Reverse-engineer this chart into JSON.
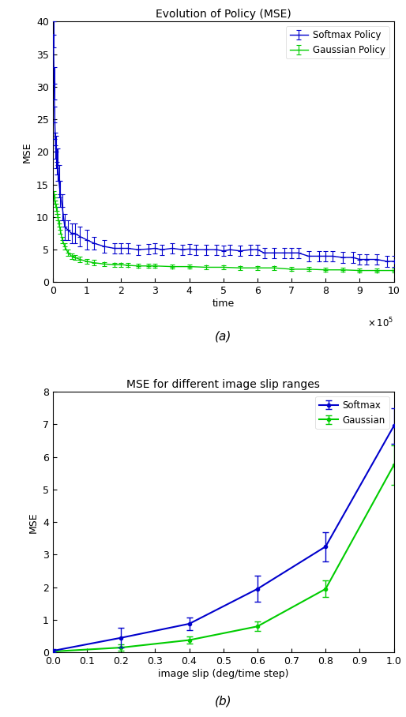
{
  "fig_width": 5.14,
  "fig_height": 9.08,
  "dpi": 100,
  "plot_a": {
    "title": "Evolution of Policy (MSE)",
    "xlabel": "time",
    "ylabel": "MSE",
    "xlim": [
      0,
      1000000
    ],
    "ylim": [
      0,
      40
    ],
    "yticks": [
      0,
      5,
      10,
      15,
      20,
      25,
      30,
      35,
      40
    ],
    "xtick_labels": [
      "0",
      "1",
      "2",
      "3",
      "4",
      "5",
      "6",
      "7",
      "8",
      "9",
      "10"
    ],
    "softmax_color": "#0000cc",
    "gaussian_color": "#00cc00",
    "legend_softmax": "Softmax Policy",
    "legend_gaussian": "Gaussian Policy",
    "softmax_x": [
      0.02,
      0.04,
      0.06,
      0.08,
      0.1,
      0.12,
      0.15,
      0.18,
      0.22,
      0.28,
      0.35,
      0.45,
      0.55,
      0.65,
      0.8,
      1.0,
      1.2,
      1.5,
      1.8,
      2.0,
      2.2,
      2.5,
      2.8,
      3.0,
      3.2,
      3.5,
      3.8,
      4.0,
      4.2,
      4.5,
      4.8,
      5.0,
      5.2,
      5.5,
      5.8,
      6.0,
      6.2,
      6.5,
      6.8,
      7.0,
      7.2,
      7.5,
      7.8,
      8.0,
      8.2,
      8.5,
      8.8,
      9.0,
      9.2,
      9.5,
      9.8,
      10.0
    ],
    "softmax_y": [
      38.0,
      30.5,
      24.5,
      21.0,
      20.0,
      18.5,
      18.0,
      15.5,
      13.5,
      11.5,
      8.5,
      8.0,
      7.5,
      7.5,
      7.0,
      6.5,
      6.0,
      5.5,
      5.2,
      5.2,
      5.2,
      5.0,
      5.1,
      5.2,
      5.0,
      5.2,
      5.0,
      5.1,
      5.0,
      5.0,
      5.0,
      4.8,
      5.0,
      4.8,
      5.0,
      5.0,
      4.5,
      4.5,
      4.5,
      4.5,
      4.5,
      4.0,
      4.0,
      4.0,
      4.0,
      3.8,
      3.8,
      3.5,
      3.5,
      3.5,
      3.2,
      3.2
    ],
    "softmax_err": [
      2.0,
      2.5,
      2.5,
      2.0,
      2.5,
      2.0,
      2.5,
      2.5,
      2.0,
      2.0,
      2.0,
      1.5,
      1.5,
      1.5,
      1.5,
      1.5,
      1.0,
      1.0,
      0.8,
      0.8,
      0.8,
      0.8,
      0.8,
      0.8,
      0.8,
      0.8,
      0.8,
      0.8,
      0.8,
      0.8,
      0.8,
      0.8,
      0.8,
      0.8,
      0.8,
      0.8,
      0.8,
      0.8,
      0.8,
      0.8,
      0.8,
      0.8,
      0.8,
      0.8,
      0.8,
      0.8,
      0.8,
      0.8,
      0.8,
      0.8,
      0.8,
      0.8
    ],
    "gaussian_x": [
      0.02,
      0.04,
      0.06,
      0.08,
      0.1,
      0.12,
      0.15,
      0.18,
      0.22,
      0.28,
      0.35,
      0.45,
      0.55,
      0.65,
      0.8,
      1.0,
      1.2,
      1.5,
      1.8,
      2.0,
      2.2,
      2.5,
      2.8,
      3.0,
      3.5,
      4.0,
      4.5,
      5.0,
      5.5,
      6.0,
      6.5,
      7.0,
      7.5,
      8.0,
      8.5,
      9.0,
      9.5,
      10.0
    ],
    "gaussian_y": [
      13.5,
      13.0,
      12.5,
      12.0,
      11.5,
      11.0,
      10.0,
      9.0,
      8.0,
      6.5,
      5.5,
      4.5,
      4.0,
      3.8,
      3.5,
      3.2,
      3.0,
      2.8,
      2.7,
      2.7,
      2.6,
      2.5,
      2.5,
      2.5,
      2.4,
      2.4,
      2.3,
      2.3,
      2.2,
      2.2,
      2.2,
      2.0,
      2.0,
      1.9,
      1.9,
      1.8,
      1.8,
      1.8
    ],
    "gaussian_err": [
      0.5,
      0.5,
      0.5,
      0.5,
      0.5,
      0.5,
      0.5,
      0.5,
      0.5,
      0.5,
      0.5,
      0.5,
      0.4,
      0.4,
      0.4,
      0.4,
      0.4,
      0.3,
      0.3,
      0.3,
      0.3,
      0.3,
      0.3,
      0.3,
      0.3,
      0.3,
      0.3,
      0.3,
      0.3,
      0.3,
      0.3,
      0.3,
      0.3,
      0.3,
      0.3,
      0.3,
      0.3,
      0.3
    ]
  },
  "plot_b": {
    "title": "MSE for different image slip ranges",
    "xlabel": "image slip (deg/time step)",
    "ylabel": "MSE",
    "xlim": [
      0,
      1.0
    ],
    "ylim": [
      0,
      8
    ],
    "yticks": [
      0,
      1,
      2,
      3,
      4,
      5,
      6,
      7,
      8
    ],
    "xticks": [
      0,
      0.1,
      0.2,
      0.3,
      0.4,
      0.5,
      0.6,
      0.7,
      0.8,
      0.9,
      1.0
    ],
    "softmax_color": "#0000cc",
    "gaussian_color": "#00cc00",
    "legend_softmax": "Softmax",
    "legend_gaussian": "Gaussian",
    "softmax_x": [
      0.0,
      0.2,
      0.4,
      0.6,
      0.8,
      1.0
    ],
    "softmax_y": [
      0.05,
      0.45,
      0.88,
      1.95,
      3.25,
      6.95
    ],
    "softmax_err": [
      0.05,
      0.3,
      0.2,
      0.4,
      0.45,
      0.55
    ],
    "gaussian_x": [
      0.0,
      0.2,
      0.4,
      0.6,
      0.8,
      1.0
    ],
    "gaussian_y": [
      0.03,
      0.15,
      0.38,
      0.8,
      1.95,
      5.75
    ],
    "gaussian_err": [
      0.03,
      0.1,
      0.1,
      0.15,
      0.25,
      0.6
    ]
  },
  "label_a": "(a)",
  "label_b": "(b)"
}
